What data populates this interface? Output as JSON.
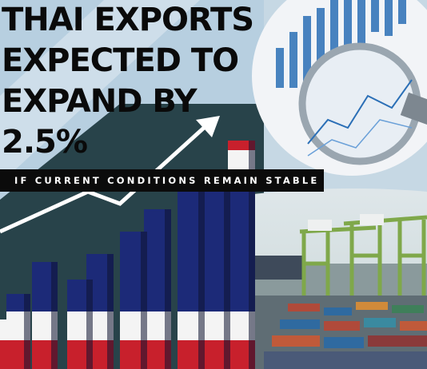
{
  "headline": {
    "lines": [
      "THAI EXPORTS",
      "EXPECTED TO",
      "EXPAND BY",
      "2.5%"
    ]
  },
  "subtitle": "IF CURRENT CONDITIONS REMAIN STABLE"
}
